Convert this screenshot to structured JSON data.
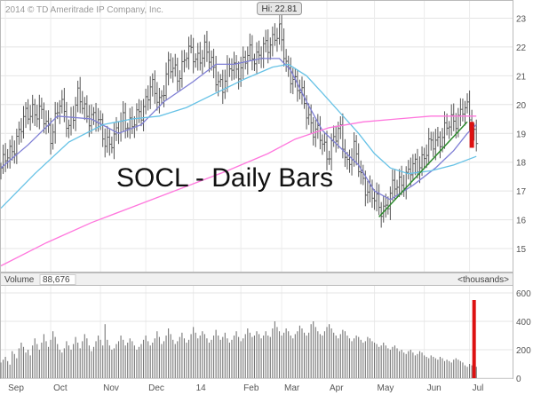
{
  "chart_data": {
    "type": "bar",
    "copyright": "2014 © TD Ameritrade IP Company, Inc.",
    "title": "SOCL - Daily Bars",
    "hi_label": "Hi: 22.81",
    "volume_label": "Volume",
    "volume_value": "88,676",
    "volume_units": "<thousands>",
    "price_axis": {
      "min": 14.2,
      "max": 23.6,
      "ticks": [
        15,
        16,
        17,
        18,
        19,
        20,
        21,
        22,
        23
      ]
    },
    "volume_axis": {
      "min": 0,
      "max": 650,
      "ticks": [
        0,
        200,
        400,
        600
      ]
    },
    "x_range": [
      0,
      226
    ],
    "month_ticks": [
      {
        "label": "Sep",
        "x": 2
      },
      {
        "label": "Oct",
        "x": 22
      },
      {
        "label": "Nov",
        "x": 44
      },
      {
        "label": "Dec",
        "x": 64
      },
      {
        "label": "14",
        "x": 85
      },
      {
        "label": "Feb",
        "x": 106
      },
      {
        "label": "Mar",
        "x": 124
      },
      {
        "label": "Apr",
        "x": 144
      },
      {
        "label": "May",
        "x": 165
      },
      {
        "label": "Jun",
        "x": 187
      },
      {
        "label": "Jul",
        "x": 207
      }
    ],
    "price_key": [
      [
        0,
        17.8
      ],
      [
        4,
        18.3
      ],
      [
        10,
        19.4
      ],
      [
        14,
        19.9
      ],
      [
        18,
        19.6
      ],
      [
        22,
        19.0
      ],
      [
        26,
        20.0
      ],
      [
        30,
        19.3
      ],
      [
        34,
        20.2
      ],
      [
        38,
        19.7
      ],
      [
        42,
        19.5
      ],
      [
        46,
        18.8
      ],
      [
        50,
        18.7
      ],
      [
        54,
        19.6
      ],
      [
        58,
        19.2
      ],
      [
        62,
        19.8
      ],
      [
        66,
        20.6
      ],
      [
        70,
        20.1
      ],
      [
        74,
        21.3
      ],
      [
        78,
        21.0
      ],
      [
        82,
        21.8
      ],
      [
        86,
        21.6
      ],
      [
        90,
        21.9
      ],
      [
        94,
        21.2
      ],
      [
        98,
        20.6
      ],
      [
        102,
        21.4
      ],
      [
        106,
        21.2
      ],
      [
        110,
        21.8
      ],
      [
        114,
        21.7
      ],
      [
        118,
        22.0
      ],
      [
        121,
        22.5
      ],
      [
        123,
        22.5
      ],
      [
        126,
        21.3
      ],
      [
        129,
        21.0
      ],
      [
        132,
        20.4
      ],
      [
        135,
        19.8
      ],
      [
        138,
        19.2
      ],
      [
        141,
        18.8
      ],
      [
        144,
        18.3
      ],
      [
        147,
        18.8
      ],
      [
        150,
        19.0
      ],
      [
        153,
        18.0
      ],
      [
        156,
        18.4
      ],
      [
        159,
        17.5
      ],
      [
        162,
        17.1
      ],
      [
        164,
        16.8
      ],
      [
        167,
        16.4
      ],
      [
        170,
        16.5
      ],
      [
        173,
        17.0
      ],
      [
        176,
        17.3
      ],
      [
        180,
        17.6
      ],
      [
        184,
        17.9
      ],
      [
        188,
        18.4
      ],
      [
        192,
        18.7
      ],
      [
        196,
        19.1
      ],
      [
        200,
        19.4
      ],
      [
        204,
        19.9
      ],
      [
        206,
        19.7
      ],
      [
        208,
        19.3
      ],
      [
        209,
        19.0
      ],
      [
        210,
        18.8
      ]
    ],
    "hi_point": {
      "x": 123,
      "y": 22.81
    },
    "series": [
      {
        "color": "#7f7fd5",
        "points": [
          [
            0,
            17.8
          ],
          [
            12,
            18.6
          ],
          [
            25,
            19.6
          ],
          [
            40,
            19.5
          ],
          [
            52,
            19.0
          ],
          [
            62,
            19.3
          ],
          [
            72,
            20.1
          ],
          [
            85,
            20.8
          ],
          [
            95,
            21.4
          ],
          [
            103,
            21.4
          ],
          [
            115,
            21.6
          ],
          [
            123,
            21.6
          ],
          [
            128,
            21.2
          ],
          [
            135,
            20.1
          ],
          [
            142,
            19.1
          ],
          [
            150,
            18.5
          ],
          [
            158,
            17.9
          ],
          [
            165,
            17.0
          ],
          [
            172,
            16.7
          ],
          [
            182,
            17.2
          ],
          [
            192,
            17.8
          ],
          [
            200,
            18.4
          ],
          [
            206,
            19.0
          ],
          [
            210,
            19.3
          ]
        ]
      },
      {
        "color": "#66c2e6",
        "points": [
          [
            0,
            16.4
          ],
          [
            15,
            17.6
          ],
          [
            30,
            18.7
          ],
          [
            45,
            19.3
          ],
          [
            58,
            19.5
          ],
          [
            70,
            19.6
          ],
          [
            82,
            19.9
          ],
          [
            95,
            20.4
          ],
          [
            108,
            20.9
          ],
          [
            120,
            21.3
          ],
          [
            127,
            21.4
          ],
          [
            135,
            21.0
          ],
          [
            142,
            20.4
          ],
          [
            150,
            19.7
          ],
          [
            158,
            19.0
          ],
          [
            165,
            18.3
          ],
          [
            172,
            17.8
          ],
          [
            180,
            17.6
          ],
          [
            190,
            17.7
          ],
          [
            200,
            17.9
          ],
          [
            210,
            18.2
          ]
        ]
      },
      {
        "color": "#ff77dd",
        "points": [
          [
            0,
            14.4
          ],
          [
            20,
            15.2
          ],
          [
            40,
            15.9
          ],
          [
            60,
            16.5
          ],
          [
            80,
            17.1
          ],
          [
            100,
            17.7
          ],
          [
            118,
            18.3
          ],
          [
            130,
            18.8
          ],
          [
            145,
            19.2
          ],
          [
            160,
            19.4
          ],
          [
            175,
            19.5
          ],
          [
            190,
            19.6
          ],
          [
            200,
            19.6
          ],
          [
            210,
            19.6
          ]
        ]
      }
    ],
    "trendline": {
      "color": "#2e8b2e",
      "from": [
        167,
        16.1
      ],
      "to": [
        206,
        19.4
      ]
    },
    "last_bar": {
      "x": 208,
      "top": 19.4,
      "bottom": 18.5,
      "color": "#dd1111"
    },
    "volume": [
      110,
      130,
      150,
      120,
      95,
      190,
      170,
      140,
      210,
      250,
      220,
      180,
      200,
      160,
      230,
      280,
      240,
      200,
      250,
      310,
      260,
      220,
      270,
      330,
      290,
      240,
      200,
      180,
      210,
      260,
      230,
      200,
      240,
      290,
      250,
      210,
      260,
      310,
      280,
      230,
      190,
      220,
      260,
      300,
      270,
      230,
      380,
      270,
      230,
      200,
      210,
      240,
      260,
      300,
      270,
      230,
      250,
      280,
      260,
      230,
      200,
      220,
      240,
      270,
      300,
      260,
      230,
      250,
      280,
      330,
      290,
      240,
      260,
      300,
      350,
      310,
      270,
      240,
      260,
      290,
      320,
      280,
      250,
      270,
      310,
      360,
      320,
      280,
      300,
      330,
      310,
      280,
      250,
      270,
      300,
      340,
      300,
      270,
      290,
      320,
      280,
      250,
      270,
      300,
      330,
      290,
      260,
      280,
      310,
      350,
      320,
      290,
      300,
      330,
      310,
      280,
      300,
      330,
      300,
      290,
      350,
      400,
      360,
      330,
      300,
      320,
      350,
      330,
      300,
      280,
      310,
      330,
      370,
      350,
      320,
      300,
      320,
      380,
      400,
      360,
      330,
      310,
      300,
      330,
      360,
      380,
      350,
      320,
      300,
      280,
      310,
      340,
      330,
      300,
      280,
      260,
      280,
      300,
      290,
      270,
      250,
      260,
      290,
      280,
      260,
      250,
      240,
      220,
      230,
      250,
      230,
      210,
      200,
      220,
      230,
      210,
      190,
      200,
      180,
      170,
      190,
      200,
      180,
      160,
      170,
      190,
      180,
      160,
      150,
      140,
      160,
      150,
      140,
      130,
      150,
      140,
      120,
      130,
      120,
      110,
      130,
      140,
      130,
      120,
      110,
      90,
      80,
      100,
      90,
      550,
      80
    ],
    "volume_color": "#777777",
    "last_volume_color": "#dd1111"
  }
}
